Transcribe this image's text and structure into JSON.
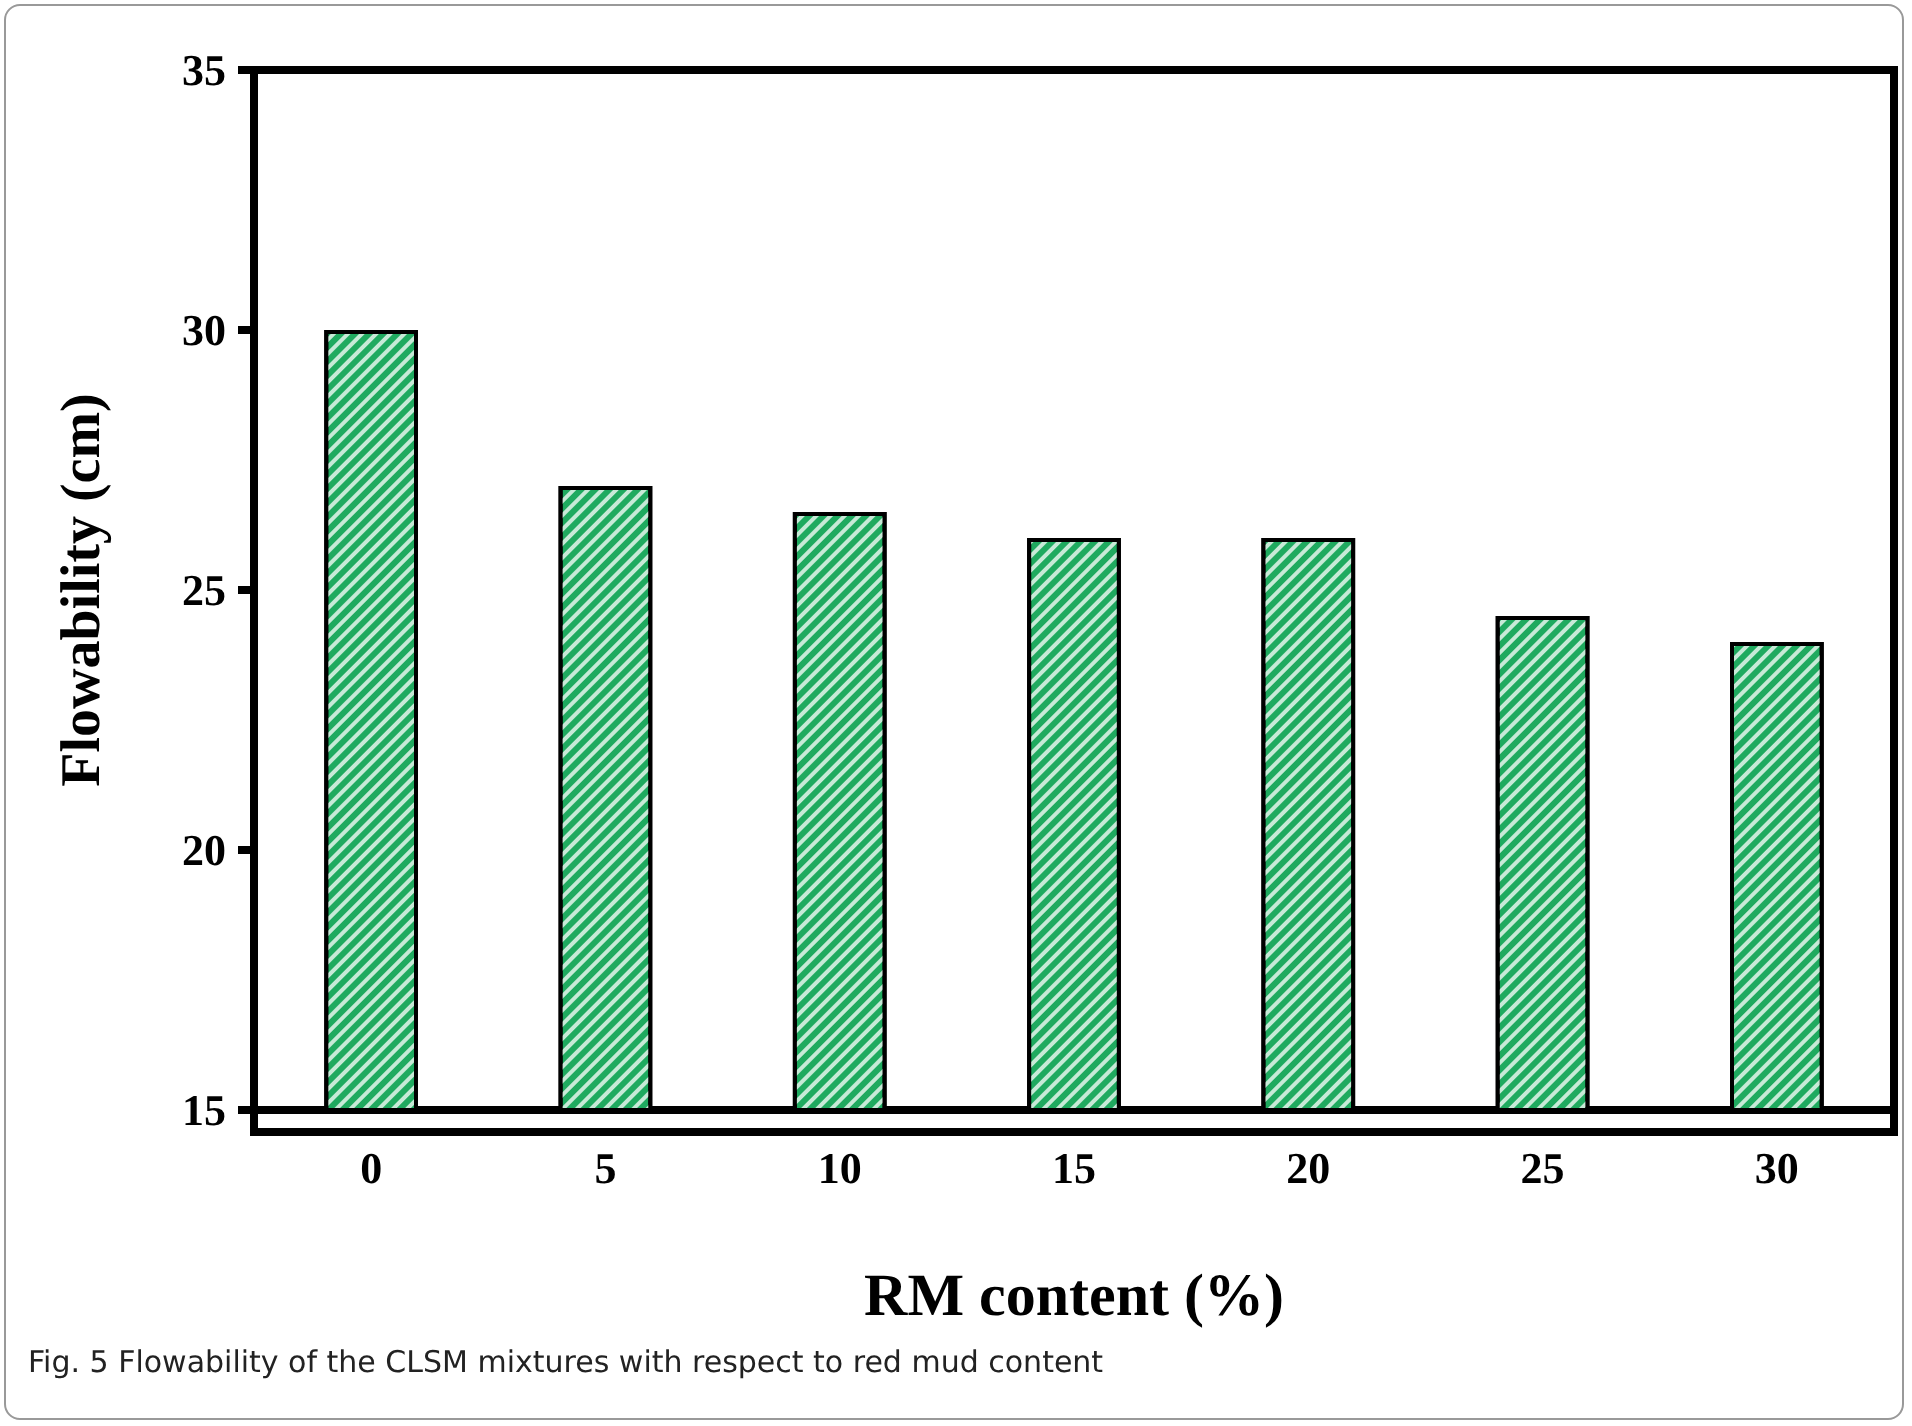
{
  "chart_data": {
    "type": "bar",
    "xlabel": "RM content (%)",
    "ylabel": "Flowability (cm)",
    "categories": [
      "0",
      "5",
      "10",
      "15",
      "20",
      "25",
      "30"
    ],
    "values": [
      30,
      27,
      26.5,
      26,
      26,
      24.5,
      24
    ],
    "color": "#1faa5f",
    "ylim": [
      15,
      35
    ],
    "yticks": [
      15,
      20,
      25,
      30,
      35
    ],
    "grid": false,
    "annotations": [
      "Fig. 5  Flowability of the CLSM mixtures with respect to red mud content"
    ]
  }
}
